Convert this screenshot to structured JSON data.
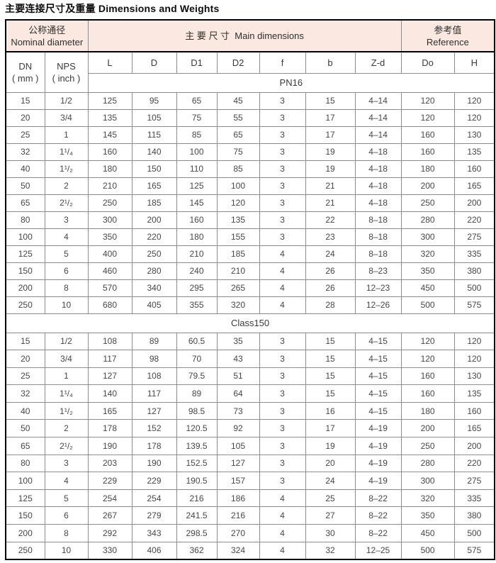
{
  "title": "主要连接尺寸及重量 Dimensions and Weights",
  "colors": {
    "header_bg": "#fbe9e1",
    "outer_border": "#000000",
    "grid_line": "#8d8d8d",
    "body_text": "#474747"
  },
  "table": {
    "header": {
      "group1_zh": "公称通径",
      "group1_en": "Nominal diameter",
      "group2_zh": "主 要 尺 寸",
      "group2_en": "Main dimensions",
      "group3_zh": "参考值",
      "group3_en": "Reference",
      "dn_line1": "DN",
      "dn_line2": "( mm )",
      "nps_line1": "NPS",
      "nps_line2": "( inch )",
      "dim_cols": [
        "L",
        "D",
        "D1",
        "D2",
        "f",
        "b",
        "Z-d",
        "Do",
        "H"
      ]
    },
    "sections": [
      {
        "label": "PN16",
        "label_span": "dims",
        "rows": [
          [
            "15",
            "1/2",
            "125",
            "95",
            "65",
            "45",
            "3",
            "15",
            "4–14",
            "120",
            "120"
          ],
          [
            "20",
            "3/4",
            "135",
            "105",
            "75",
            "55",
            "3",
            "17",
            "4–14",
            "120",
            "120"
          ],
          [
            "25",
            "1",
            "145",
            "115",
            "85",
            "65",
            "3",
            "17",
            "4–14",
            "160",
            "130"
          ],
          [
            "32",
            "1¹/₄",
            "160",
            "140",
            "100",
            "75",
            "3",
            "19",
            "4–18",
            "160",
            "135"
          ],
          [
            "40",
            "1¹/₂",
            "180",
            "150",
            "110",
            "85",
            "3",
            "19",
            "4–18",
            "180",
            "160"
          ],
          [
            "50",
            "2",
            "210",
            "165",
            "125",
            "100",
            "3",
            "21",
            "4–18",
            "200",
            "165"
          ],
          [
            "65",
            "2¹/₂",
            "250",
            "185",
            "145",
            "120",
            "3",
            "21",
            "4–18",
            "250",
            "200"
          ],
          [
            "80",
            "3",
            "300",
            "200",
            "160",
            "135",
            "3",
            "22",
            "8–18",
            "280",
            "220"
          ],
          [
            "100",
            "4",
            "350",
            "220",
            "180",
            "155",
            "3",
            "23",
            "8–18",
            "300",
            "275"
          ],
          [
            "125",
            "5",
            "400",
            "250",
            "210",
            "185",
            "4",
            "24",
            "8–18",
            "320",
            "335"
          ],
          [
            "150",
            "6",
            "460",
            "280",
            "240",
            "210",
            "4",
            "26",
            "8–23",
            "350",
            "380"
          ],
          [
            "200",
            "8",
            "570",
            "340",
            "295",
            "265",
            "4",
            "26",
            "12–23",
            "450",
            "500"
          ],
          [
            "250",
            "10",
            "680",
            "405",
            "355",
            "320",
            "4",
            "28",
            "12–26",
            "500",
            "575"
          ]
        ]
      },
      {
        "label": "Class150",
        "label_span": "full",
        "rows": [
          [
            "15",
            "1/2",
            "108",
            "89",
            "60.5",
            "35",
            "3",
            "15",
            "4–15",
            "120",
            "120"
          ],
          [
            "20",
            "3/4",
            "117",
            "98",
            "70",
            "43",
            "3",
            "15",
            "4–15",
            "120",
            "120"
          ],
          [
            "25",
            "1",
            "127",
            "108",
            "79.5",
            "51",
            "3",
            "15",
            "4–15",
            "160",
            "130"
          ],
          [
            "32",
            "1¹/₄",
            "140",
            "117",
            "89",
            "64",
            "3",
            "15",
            "4–15",
            "160",
            "135"
          ],
          [
            "40",
            "1¹/₂",
            "165",
            "127",
            "98.5",
            "73",
            "3",
            "16",
            "4–15",
            "180",
            "160"
          ],
          [
            "50",
            "2",
            "178",
            "152",
            "120.5",
            "92",
            "3",
            "17",
            "4–19",
            "200",
            "165"
          ],
          [
            "65",
            "2¹/₂",
            "190",
            "178",
            "139.5",
            "105",
            "3",
            "19",
            "4–19",
            "250",
            "200"
          ],
          [
            "80",
            "3",
            "203",
            "190",
            "152.5",
            "127",
            "3",
            "20",
            "4–19",
            "280",
            "220"
          ],
          [
            "100",
            "4",
            "229",
            "229",
            "190.5",
            "157",
            "3",
            "24",
            "4–19",
            "300",
            "275"
          ],
          [
            "125",
            "5",
            "254",
            "254",
            "216",
            "186",
            "4",
            "25",
            "8–22",
            "320",
            "335"
          ],
          [
            "150",
            "6",
            "267",
            "279",
            "241.5",
            "216",
            "4",
            "27",
            "8–22",
            "350",
            "380"
          ],
          [
            "200",
            "8",
            "292",
            "343",
            "298.5",
            "270",
            "4",
            "30",
            "8–22",
            "450",
            "500"
          ],
          [
            "250",
            "10",
            "330",
            "406",
            "362",
            "324",
            "4",
            "32",
            "12–25",
            "500",
            "575"
          ]
        ]
      }
    ]
  }
}
